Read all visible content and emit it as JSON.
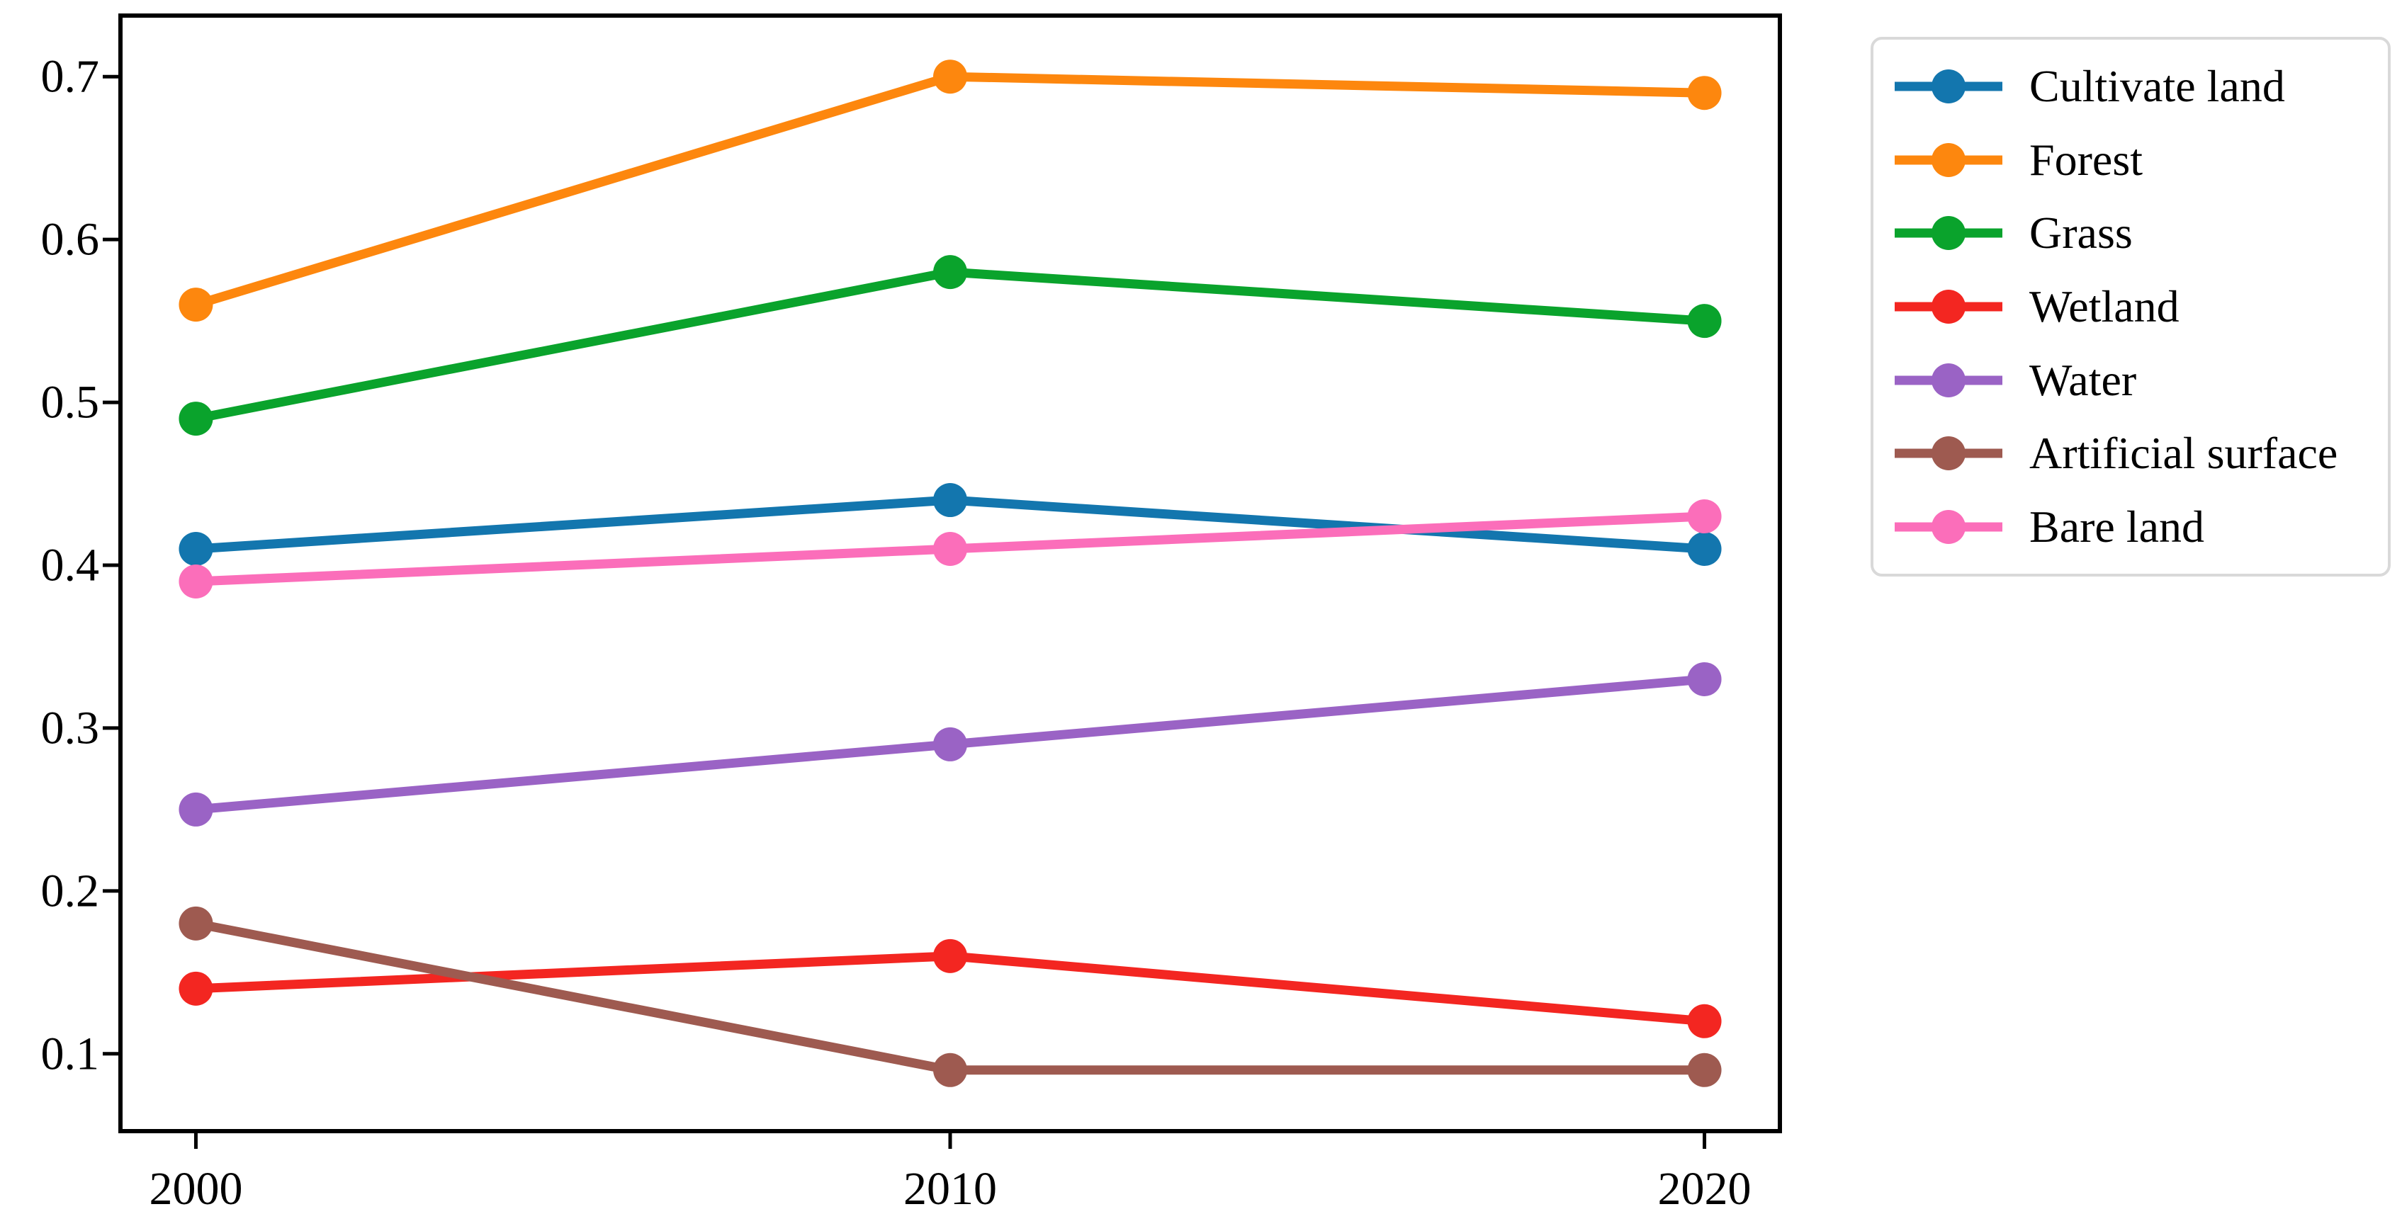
{
  "figure": {
    "kind": "line-chart",
    "background": "#ffffff",
    "axis_color": "#000000",
    "legend_border_color": "#d9d9d9"
  },
  "chart_data": {
    "type": "line",
    "title": "",
    "xlabel": "",
    "ylabel": "",
    "grid": false,
    "legend_position": "outside-upper-right",
    "x": [
      2000,
      2010,
      2020
    ],
    "x_tick_labels": [
      "2000",
      "2010",
      "2020"
    ],
    "y_tick_labels": [
      "0.1",
      "0.2",
      "0.3",
      "0.4",
      "0.5",
      "0.6",
      "0.7"
    ],
    "y_tick_values": [
      0.1,
      0.2,
      0.3,
      0.4,
      0.5,
      0.6,
      0.7
    ],
    "xlim": [
      1999,
      2021
    ],
    "ylim": [
      0.0525,
      0.7375
    ],
    "marker": "circle",
    "series": [
      {
        "name": "Cultivate land",
        "color": "#1376ae",
        "values": [
          0.41,
          0.44,
          0.41
        ]
      },
      {
        "name": "Forest",
        "color": "#fd870e",
        "values": [
          0.56,
          0.7,
          0.69
        ]
      },
      {
        "name": "Grass",
        "color": "#0aa32c",
        "values": [
          0.49,
          0.58,
          0.55
        ]
      },
      {
        "name": "Wetland",
        "color": "#f32621",
        "values": [
          0.14,
          0.16,
          0.12
        ]
      },
      {
        "name": "Water",
        "color": "#9a63c5",
        "values": [
          0.25,
          0.29,
          0.33
        ]
      },
      {
        "name": "Artificial surface",
        "color": "#9e5a50",
        "values": [
          0.18,
          0.09,
          0.09
        ]
      },
      {
        "name": "Bare land",
        "color": "#fb6eba",
        "values": [
          0.39,
          0.41,
          0.43
        ]
      }
    ]
  }
}
